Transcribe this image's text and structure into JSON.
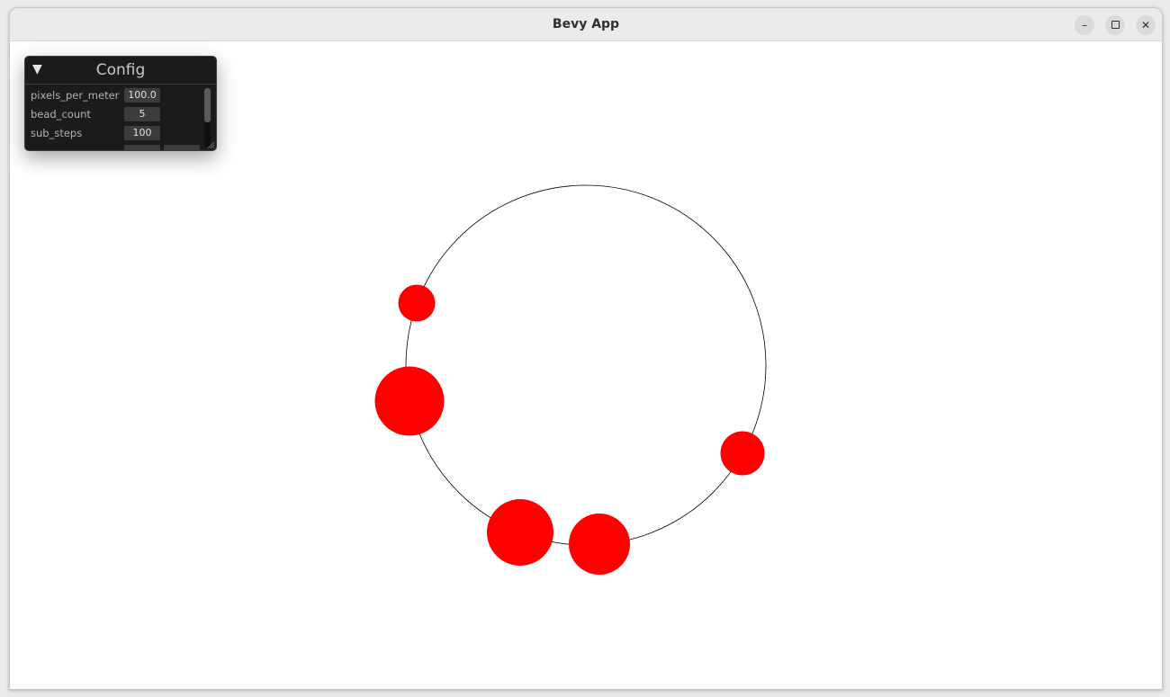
{
  "window": {
    "title": "Bevy App",
    "controls": {
      "minimize_icon": "minimize-icon",
      "maximize_icon": "maximize-icon",
      "close_icon": "close-icon"
    }
  },
  "config": {
    "title": "Config",
    "collapse_icon": "triangle-down-icon",
    "fields": [
      {
        "label": "pixels_per_meter",
        "value": "100.0"
      },
      {
        "label": "bead_count",
        "value": "5"
      },
      {
        "label": "sub_steps",
        "value": "100"
      }
    ]
  },
  "scene": {
    "wire_color": "#000000",
    "bead_color": "#ff0000",
    "bead_count": 5
  }
}
